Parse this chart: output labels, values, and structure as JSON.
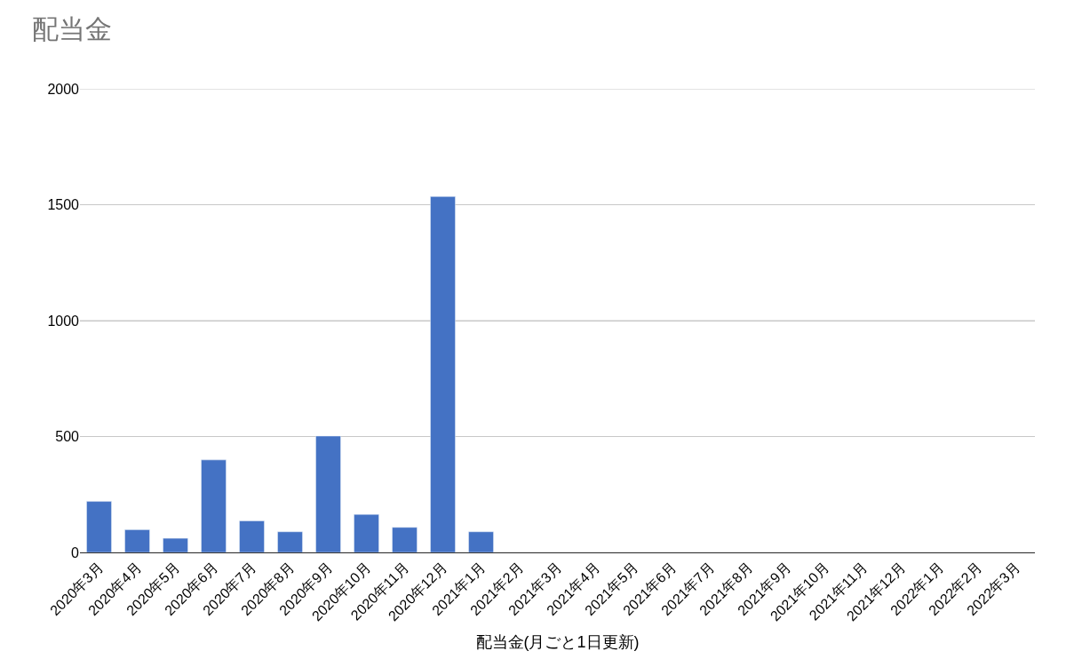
{
  "chart_data": {
    "type": "bar",
    "title": "配当金",
    "xlabel": "配当金(月ごと1日更新)",
    "categories": [
      "2020年3月",
      "2020年4月",
      "2020年5月",
      "2020年6月",
      "2020年7月",
      "2020年8月",
      "2020年9月",
      "2020年10月",
      "2020年11月",
      "2020年12月",
      "2021年1月",
      "2021年2月",
      "2021年3月",
      "2021年4月",
      "2021年5月",
      "2021年6月",
      "2021年7月",
      "2021年8月",
      "2021年9月",
      "2021年10月",
      "2021年11月",
      "2021年12月",
      "2022年1月",
      "2022年2月",
      "2022年3月"
    ],
    "values": [
      220,
      98,
      61,
      399,
      136,
      89,
      502,
      164,
      108,
      1535,
      89,
      null,
      null,
      null,
      null,
      null,
      null,
      null,
      null,
      null,
      null,
      null,
      null,
      null,
      null
    ],
    "color": "#4472c4",
    "ylim": [
      0,
      2000
    ],
    "yticks": [
      0,
      500,
      1000,
      1500,
      2000
    ],
    "grid": "y"
  }
}
